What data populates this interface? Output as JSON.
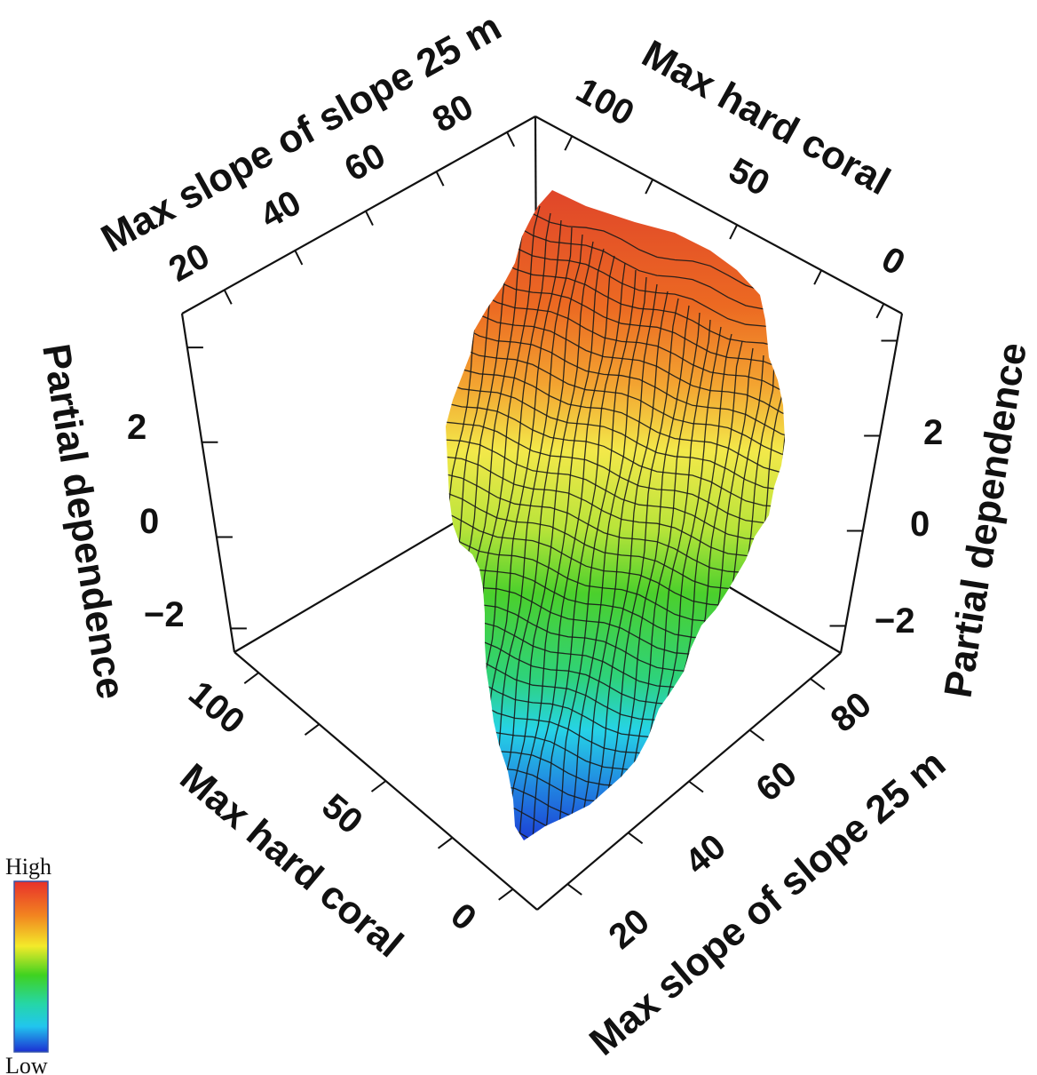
{
  "chart_data": {
    "type": "surface",
    "zlabel": "Partial dependence",
    "x_axis": {
      "label": "Max hard coral",
      "ticks": [
        "0",
        "50",
        "100"
      ],
      "range": [
        0,
        100
      ]
    },
    "y_axis": {
      "label": "Max slope of slope 25 m",
      "ticks": [
        "20",
        "40",
        "60",
        "80"
      ],
      "range": [
        15,
        90
      ]
    },
    "z_axis": {
      "label": "Partial dependence",
      "ticks": [
        "−2",
        "0",
        "2"
      ],
      "range": [
        -3,
        3.5
      ]
    },
    "legend": {
      "high": "High",
      "low": "Low",
      "colors": [
        "#d9342b",
        "#f2801e",
        "#f5e82a",
        "#3fd220",
        "#21d8e6",
        "#1c3fd6"
      ]
    }
  }
}
